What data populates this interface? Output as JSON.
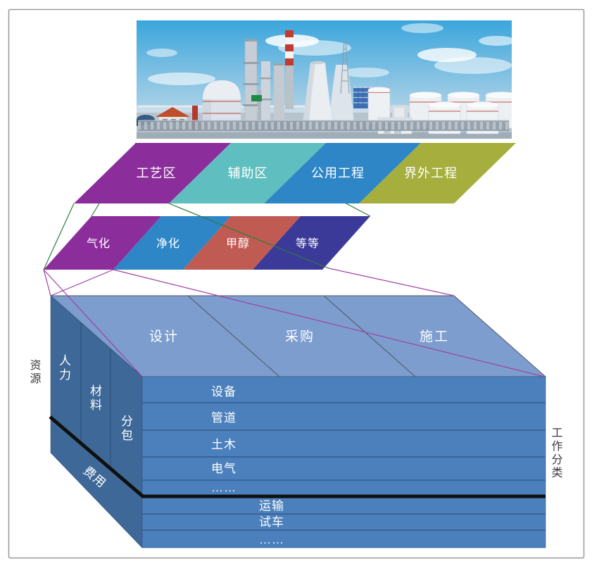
{
  "figure": {
    "kind": "工作分解结构示意图",
    "frame_border_color": "#999999"
  },
  "level1": {
    "items": [
      {
        "label": "工艺区",
        "color": "#8B2E9C"
      },
      {
        "label": "辅助区",
        "color": "#5FBFC0"
      },
      {
        "label": "公用工程",
        "color": "#2E86C6"
      },
      {
        "label": "界外工程",
        "color": "#A6AF3D"
      }
    ]
  },
  "level2": {
    "items": [
      {
        "label": "气化",
        "color": "#8B2E9C"
      },
      {
        "label": "净化",
        "color": "#2E86C6"
      },
      {
        "label": "甲醇",
        "color": "#C05B54"
      },
      {
        "label": "等等",
        "color": "#3B3A99"
      }
    ]
  },
  "cube": {
    "axis_left": "资源",
    "axis_right": "工作分类",
    "top_face": {
      "color": "#7C9DCE",
      "labels": [
        "设计",
        "采购",
        "施工"
      ]
    },
    "left_face": {
      "color": "#3D6897",
      "columns": [
        "人力",
        "材料",
        "分包"
      ],
      "corner_label": "费用"
    },
    "front_face": {
      "color": "#4B80BD",
      "rows_upper": [
        "设备",
        "管道",
        "土木",
        "电气",
        "……"
      ],
      "rows_lower": [
        "运输",
        "试车",
        "……"
      ]
    }
  },
  "connectors": {
    "green_color": "#2E7D3C",
    "purple_color": "#A040A4",
    "emphasis_color": "#101010"
  }
}
